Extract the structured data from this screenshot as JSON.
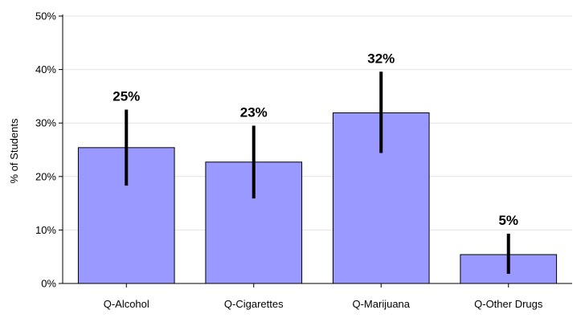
{
  "chart_data": {
    "type": "bar",
    "title": "",
    "xlabel": "",
    "ylabel": "% of Students",
    "categories": [
      "Q-Alcohol",
      "Q-Cigarettes",
      "Q-Marijuana",
      "Q-Other Drugs"
    ],
    "values": [
      25.4,
      22.7,
      31.9,
      5.4
    ],
    "data_labels": [
      "25%",
      "23%",
      "32%",
      "5%"
    ],
    "error_low": [
      18.3,
      15.9,
      24.4,
      1.8
    ],
    "error_high": [
      32.5,
      29.5,
      39.6,
      9.3
    ],
    "ylim": [
      0,
      50
    ],
    "yticks": [
      0,
      10,
      20,
      30,
      40,
      50
    ],
    "ytick_labels": [
      "0%",
      "10%",
      "20%",
      "30%",
      "40%",
      "50%"
    ],
    "grid": true,
    "bar_color": "#9999ff",
    "bar_edge_color": "#000000",
    "error_bar_color": "#000000"
  }
}
